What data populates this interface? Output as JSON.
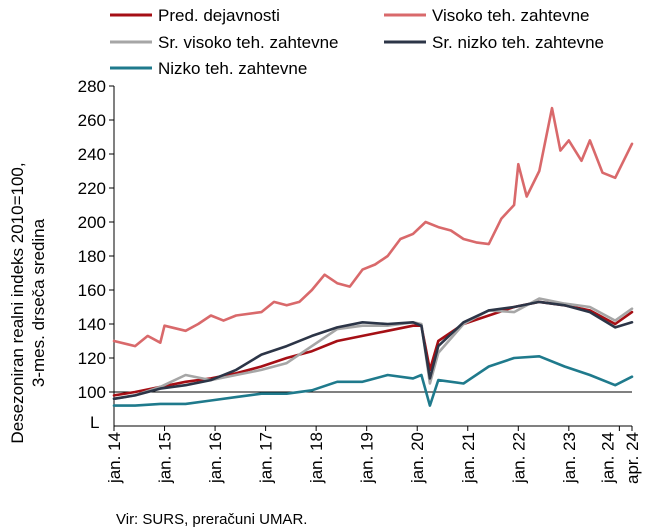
{
  "chart_data": {
    "type": "line",
    "ylabel_lines": [
      "Desezoniran realni indeks 2010=100,",
      "3-mes. drseča sredina"
    ],
    "ylim": [
      80,
      280
    ],
    "yticks": [
      100,
      120,
      140,
      160,
      180,
      200,
      220,
      240,
      260,
      280
    ],
    "y_axis_break_label": "L",
    "x_start": "2014-01",
    "x_end": "2024-04",
    "xticks": [
      {
        "label": "jan. 14",
        "date": "2014-01"
      },
      {
        "label": "jan. 15",
        "date": "2015-01"
      },
      {
        "label": "jan. 16",
        "date": "2016-01"
      },
      {
        "label": "jan. 17",
        "date": "2017-01"
      },
      {
        "label": "jan. 18",
        "date": "2018-01"
      },
      {
        "label": "jan. 19",
        "date": "2019-01"
      },
      {
        "label": "jan. 20",
        "date": "2020-01"
      },
      {
        "label": "jan. 21",
        "date": "2021-01"
      },
      {
        "label": "jan. 22",
        "date": "2022-01"
      },
      {
        "label": "jan. 23",
        "date": "2023-01"
      },
      {
        "label": "jan. 24",
        "date": "2024-01"
      },
      {
        "label": "apr. 24",
        "date": "2024-04"
      }
    ],
    "reference_line": 100,
    "grid": false,
    "legend_position": "top",
    "series": [
      {
        "name": "Pred. dejavnosti",
        "color": "#a50f15",
        "points": [
          [
            "2014-01",
            98
          ],
          [
            "2014-06",
            100
          ],
          [
            "2014-12",
            103
          ],
          [
            "2015-06",
            106
          ],
          [
            "2015-12",
            108
          ],
          [
            "2016-06",
            111
          ],
          [
            "2016-12",
            115
          ],
          [
            "2017-06",
            120
          ],
          [
            "2017-12",
            124
          ],
          [
            "2018-06",
            130
          ],
          [
            "2018-12",
            133
          ],
          [
            "2019-06",
            136
          ],
          [
            "2019-12",
            139
          ],
          [
            "2020-02",
            139
          ],
          [
            "2020-04",
            113
          ],
          [
            "2020-06",
            130
          ],
          [
            "2020-12",
            140
          ],
          [
            "2021-06",
            145
          ],
          [
            "2021-12",
            150
          ],
          [
            "2022-06",
            153
          ],
          [
            "2022-12",
            151
          ],
          [
            "2023-06",
            148
          ],
          [
            "2023-12",
            140
          ],
          [
            "2024-04",
            147
          ]
        ]
      },
      {
        "name": "Visoko teh. zahtevne",
        "color": "#d9696b",
        "points": [
          [
            "2014-01",
            130
          ],
          [
            "2014-06",
            127
          ],
          [
            "2014-09",
            133
          ],
          [
            "2014-12",
            129
          ],
          [
            "2015-01",
            139
          ],
          [
            "2015-06",
            136
          ],
          [
            "2015-09",
            140
          ],
          [
            "2015-12",
            145
          ],
          [
            "2016-03",
            142
          ],
          [
            "2016-06",
            145
          ],
          [
            "2016-12",
            147
          ],
          [
            "2017-03",
            153
          ],
          [
            "2017-06",
            151
          ],
          [
            "2017-09",
            153
          ],
          [
            "2017-12",
            160
          ],
          [
            "2018-03",
            169
          ],
          [
            "2018-06",
            164
          ],
          [
            "2018-09",
            162
          ],
          [
            "2018-12",
            172
          ],
          [
            "2019-03",
            175
          ],
          [
            "2019-06",
            180
          ],
          [
            "2019-09",
            190
          ],
          [
            "2019-12",
            193
          ],
          [
            "2020-03",
            200
          ],
          [
            "2020-06",
            197
          ],
          [
            "2020-09",
            195
          ],
          [
            "2020-12",
            190
          ],
          [
            "2021-03",
            188
          ],
          [
            "2021-06",
            187
          ],
          [
            "2021-09",
            202
          ],
          [
            "2021-12",
            210
          ],
          [
            "2022-01",
            234
          ],
          [
            "2022-03",
            215
          ],
          [
            "2022-06",
            230
          ],
          [
            "2022-09",
            267
          ],
          [
            "2022-11",
            242
          ],
          [
            "2023-01",
            248
          ],
          [
            "2023-04",
            236
          ],
          [
            "2023-06",
            248
          ],
          [
            "2023-09",
            229
          ],
          [
            "2023-12",
            226
          ],
          [
            "2024-04",
            246
          ]
        ]
      },
      {
        "name": "Sr. visoko teh. zahtevne",
        "color": "#a6a6a6",
        "points": [
          [
            "2014-01",
            96
          ],
          [
            "2014-06",
            98
          ],
          [
            "2014-12",
            103
          ],
          [
            "2015-06",
            110
          ],
          [
            "2015-12",
            107
          ],
          [
            "2016-06",
            110
          ],
          [
            "2016-12",
            113
          ],
          [
            "2017-06",
            117
          ],
          [
            "2017-12",
            127
          ],
          [
            "2018-06",
            137
          ],
          [
            "2018-12",
            139
          ],
          [
            "2019-06",
            139
          ],
          [
            "2019-12",
            141
          ],
          [
            "2020-02",
            140
          ],
          [
            "2020-04",
            105
          ],
          [
            "2020-06",
            123
          ],
          [
            "2020-12",
            140
          ],
          [
            "2021-06",
            148
          ],
          [
            "2021-12",
            147
          ],
          [
            "2022-06",
            155
          ],
          [
            "2022-12",
            152
          ],
          [
            "2023-06",
            150
          ],
          [
            "2023-12",
            142
          ],
          [
            "2024-04",
            149
          ]
        ]
      },
      {
        "name": "Sr. nizko teh. zahtevne",
        "color": "#2c3547",
        "points": [
          [
            "2014-01",
            96
          ],
          [
            "2014-06",
            98
          ],
          [
            "2014-12",
            102
          ],
          [
            "2015-06",
            104
          ],
          [
            "2015-12",
            107
          ],
          [
            "2016-06",
            113
          ],
          [
            "2016-12",
            122
          ],
          [
            "2017-06",
            127
          ],
          [
            "2017-12",
            133
          ],
          [
            "2018-06",
            138
          ],
          [
            "2018-12",
            141
          ],
          [
            "2019-06",
            140
          ],
          [
            "2019-12",
            141
          ],
          [
            "2020-02",
            139
          ],
          [
            "2020-04",
            108
          ],
          [
            "2020-06",
            127
          ],
          [
            "2020-12",
            141
          ],
          [
            "2021-06",
            148
          ],
          [
            "2021-12",
            150
          ],
          [
            "2022-06",
            153
          ],
          [
            "2022-12",
            151
          ],
          [
            "2023-06",
            147
          ],
          [
            "2023-12",
            138
          ],
          [
            "2024-04",
            141
          ]
        ]
      },
      {
        "name": "Nizko teh. zahtevne",
        "color": "#1f7a8c",
        "points": [
          [
            "2014-01",
            92
          ],
          [
            "2014-06",
            92
          ],
          [
            "2014-12",
            93
          ],
          [
            "2015-06",
            93
          ],
          [
            "2015-12",
            95
          ],
          [
            "2016-06",
            97
          ],
          [
            "2016-12",
            99
          ],
          [
            "2017-06",
            99
          ],
          [
            "2017-12",
            101
          ],
          [
            "2018-06",
            106
          ],
          [
            "2018-12",
            106
          ],
          [
            "2019-06",
            110
          ],
          [
            "2019-12",
            108
          ],
          [
            "2020-02",
            110
          ],
          [
            "2020-04",
            92
          ],
          [
            "2020-06",
            107
          ],
          [
            "2020-12",
            105
          ],
          [
            "2021-06",
            115
          ],
          [
            "2021-12",
            120
          ],
          [
            "2022-06",
            121
          ],
          [
            "2022-12",
            115
          ],
          [
            "2023-06",
            110
          ],
          [
            "2023-12",
            104
          ],
          [
            "2024-04",
            109
          ]
        ]
      }
    ]
  },
  "source": "Vir: SURS, preračuni UMAR."
}
